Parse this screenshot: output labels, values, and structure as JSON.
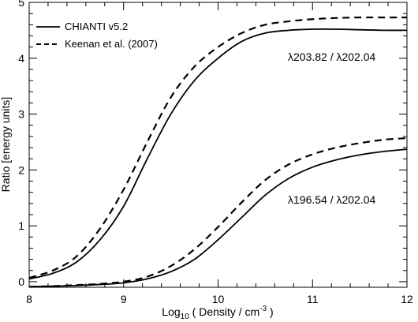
{
  "chart_data": {
    "type": "line",
    "title": "",
    "xlabel": "Log10 ( Density / cm-3 )",
    "ylabel": "Ratio [energy units]",
    "xlim": [
      8,
      12
    ],
    "ylim": [
      -0.1,
      5
    ],
    "xticks": [
      8,
      9,
      10,
      11,
      12
    ],
    "yticks": [
      0,
      1,
      2,
      3,
      4,
      5
    ],
    "grid": false,
    "legend": {
      "placement": "top-left"
    },
    "series": [
      {
        "name": "CHIANTI v5.2",
        "style": "solid",
        "group": "upper",
        "x": [
          8.0,
          8.25,
          8.5,
          8.75,
          9.0,
          9.25,
          9.5,
          9.75,
          10.0,
          10.25,
          10.5,
          10.75,
          11.0,
          11.25,
          11.5,
          11.75,
          12.0
        ],
        "y": [
          0.05,
          0.15,
          0.35,
          0.75,
          1.35,
          2.2,
          3.0,
          3.6,
          4.0,
          4.3,
          4.45,
          4.5,
          4.52,
          4.52,
          4.51,
          4.5,
          4.5
        ]
      },
      {
        "name": "Keenan et al. (2007)",
        "style": "dashed",
        "group": "upper",
        "x": [
          8.0,
          8.25,
          8.5,
          8.75,
          9.0,
          9.25,
          9.5,
          9.75,
          10.0,
          10.25,
          10.5,
          10.75,
          11.0,
          11.25,
          11.5,
          11.75,
          12.0
        ],
        "y": [
          0.07,
          0.2,
          0.45,
          0.95,
          1.65,
          2.5,
          3.3,
          3.85,
          4.2,
          4.45,
          4.6,
          4.66,
          4.7,
          4.72,
          4.73,
          4.73,
          4.73
        ]
      },
      {
        "name": "CHIANTI v5.2",
        "style": "solid",
        "group": "lower",
        "x": [
          8.0,
          8.25,
          8.5,
          8.75,
          9.0,
          9.25,
          9.5,
          9.75,
          10.0,
          10.25,
          10.5,
          10.75,
          11.0,
          11.25,
          11.5,
          11.75,
          12.0
        ],
        "y": [
          -0.09,
          -0.08,
          -0.07,
          -0.05,
          -0.02,
          0.05,
          0.18,
          0.4,
          0.75,
          1.15,
          1.55,
          1.85,
          2.05,
          2.18,
          2.27,
          2.33,
          2.37
        ]
      },
      {
        "name": "Keenan et al. (2007)",
        "style": "dashed",
        "group": "lower",
        "x": [
          8.0,
          8.25,
          8.5,
          8.75,
          9.0,
          9.25,
          9.5,
          9.75,
          10.0,
          10.25,
          10.5,
          10.75,
          11.0,
          11.25,
          11.5,
          11.75,
          12.0
        ],
        "y": [
          -0.09,
          -0.08,
          -0.06,
          -0.04,
          0.0,
          0.09,
          0.28,
          0.58,
          0.98,
          1.42,
          1.82,
          2.1,
          2.28,
          2.4,
          2.48,
          2.54,
          2.57
        ]
      }
    ],
    "legend_entries": [
      {
        "label": "CHIANTI v5.2",
        "style": "solid"
      },
      {
        "label": "Keenan et al. (2007)",
        "style": "dashed"
      }
    ],
    "annotations": [
      {
        "text": "λ203.82 / λ202.04",
        "x": 11.0,
        "y": 4.0
      },
      {
        "text": "λ196.54 / λ202.04",
        "x": 11.0,
        "y": 1.9
      }
    ]
  }
}
